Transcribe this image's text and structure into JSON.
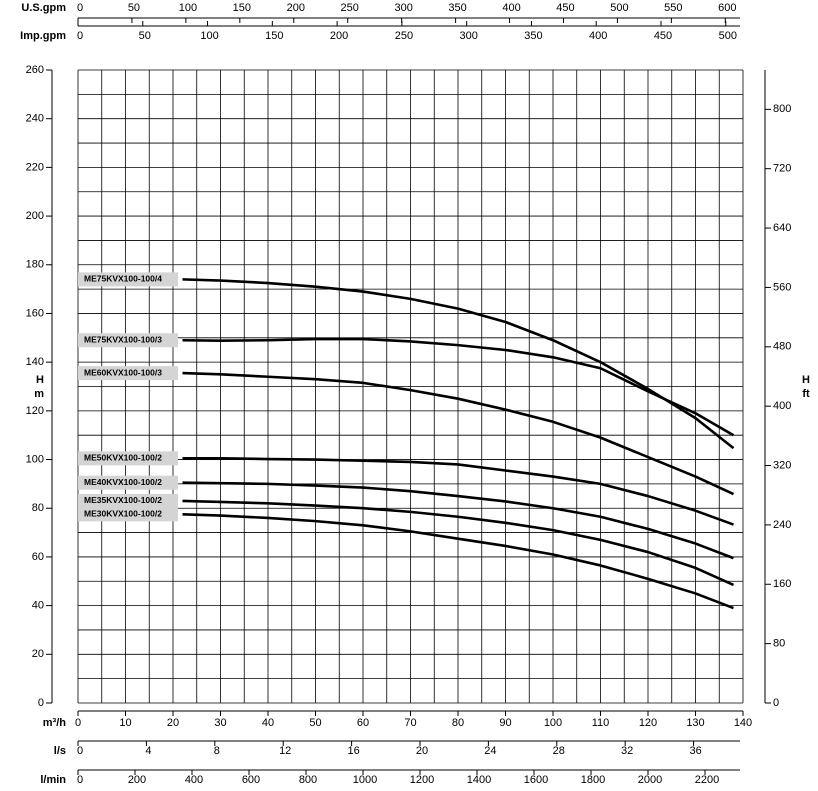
{
  "chart_data": {
    "type": "line",
    "xlabel": "m³/h",
    "ylabel": {
      "symbol": "H",
      "unit": "m"
    },
    "y2label": {
      "symbol": "H",
      "unit": "ft"
    },
    "x": [
      22,
      30,
      40,
      50,
      60,
      70,
      80,
      90,
      100,
      110,
      120,
      130,
      138
    ],
    "xlim": [
      0,
      140
    ],
    "xticks": [
      0,
      10,
      20,
      30,
      40,
      50,
      60,
      70,
      80,
      90,
      100,
      110,
      120,
      130,
      140
    ],
    "xgrid": [
      0,
      5,
      10,
      15,
      20,
      25,
      30,
      35,
      40,
      45,
      50,
      55,
      60,
      65,
      70,
      75,
      80,
      85,
      90,
      95,
      100,
      105,
      110,
      115,
      120,
      125,
      130,
      135,
      140
    ],
    "ylim": [
      0,
      260
    ],
    "yticks": [
      0,
      20,
      40,
      60,
      80,
      100,
      120,
      140,
      160,
      180,
      200,
      220,
      240,
      260
    ],
    "ygrid": [
      0,
      10,
      20,
      30,
      40,
      50,
      60,
      70,
      80,
      90,
      100,
      110,
      120,
      130,
      140,
      150,
      160,
      170,
      180,
      190,
      200,
      210,
      220,
      230,
      240,
      250,
      260
    ],
    "y2lim": [
      0,
      853
    ],
    "y2ticks": [
      0,
      80,
      160,
      240,
      320,
      400,
      480,
      560,
      640,
      720,
      800
    ],
    "grid": true,
    "top_axes": [
      {
        "label": "U.S.gpm",
        "lim": [
          0,
          616.4
        ],
        "ticks": [
          0,
          50,
          100,
          150,
          200,
          250,
          300,
          350,
          400,
          450,
          500,
          550,
          600
        ]
      },
      {
        "label": "Imp.gpm",
        "lim": [
          0,
          513.3
        ],
        "ticks": [
          0,
          50,
          100,
          150,
          200,
          250,
          300,
          350,
          400,
          450,
          500
        ]
      }
    ],
    "bottom_axes": [
      {
        "label": "l/s",
        "lim": [
          0,
          38.89
        ],
        "ticks": [
          0,
          4,
          8,
          12,
          16,
          20,
          24,
          28,
          32,
          36
        ]
      },
      {
        "label": "l/min",
        "lim": [
          0,
          2333.3
        ],
        "ticks": [
          0,
          200,
          400,
          600,
          800,
          1000,
          1200,
          1400,
          1600,
          1800,
          2000,
          2200
        ]
      }
    ],
    "series": [
      {
        "name": "ME75KVX100-100/4",
        "color": "#000000",
        "values": [
          174,
          173.5,
          172.5,
          171,
          169,
          166,
          162,
          156.5,
          149,
          140,
          129,
          117,
          104.7
        ]
      },
      {
        "name": "ME75KVX100-100/3",
        "color": "#000000",
        "values": [
          149,
          148.8,
          149,
          149.5,
          149.5,
          148.5,
          147,
          145,
          142,
          137.5,
          128,
          119,
          110
        ]
      },
      {
        "name": "ME60KVX100-100/3",
        "color": "#000000",
        "values": [
          135.5,
          135,
          134,
          133,
          131.5,
          128.5,
          125,
          120.5,
          115.5,
          109,
          101,
          93,
          85.8
        ]
      },
      {
        "name": "ME50KVX100-100/2",
        "color": "#000000",
        "values": [
          100.5,
          100.5,
          100.2,
          100,
          99.5,
          99,
          98,
          95.5,
          93,
          90,
          85,
          79,
          73.3
        ]
      },
      {
        "name": "ME40KVX100-100/2",
        "color": "#000000",
        "values": [
          90.5,
          90.3,
          90,
          89.3,
          88.5,
          87,
          85,
          82.8,
          80,
          76.5,
          71.5,
          65.5,
          59.5
        ]
      },
      {
        "name": "ME35KVX100-100/2",
        "color": "#000000",
        "values": [
          83,
          82.6,
          82,
          81.1,
          80,
          78.5,
          76.5,
          74,
          71,
          67,
          62,
          55.5,
          48.5
        ]
      },
      {
        "name": "ME30KVX100-100/2",
        "color": "#000000",
        "values": [
          77.5,
          77,
          76,
          74.7,
          73,
          70.5,
          67.5,
          64.5,
          61,
          56.5,
          51,
          45,
          39
        ]
      }
    ]
  }
}
